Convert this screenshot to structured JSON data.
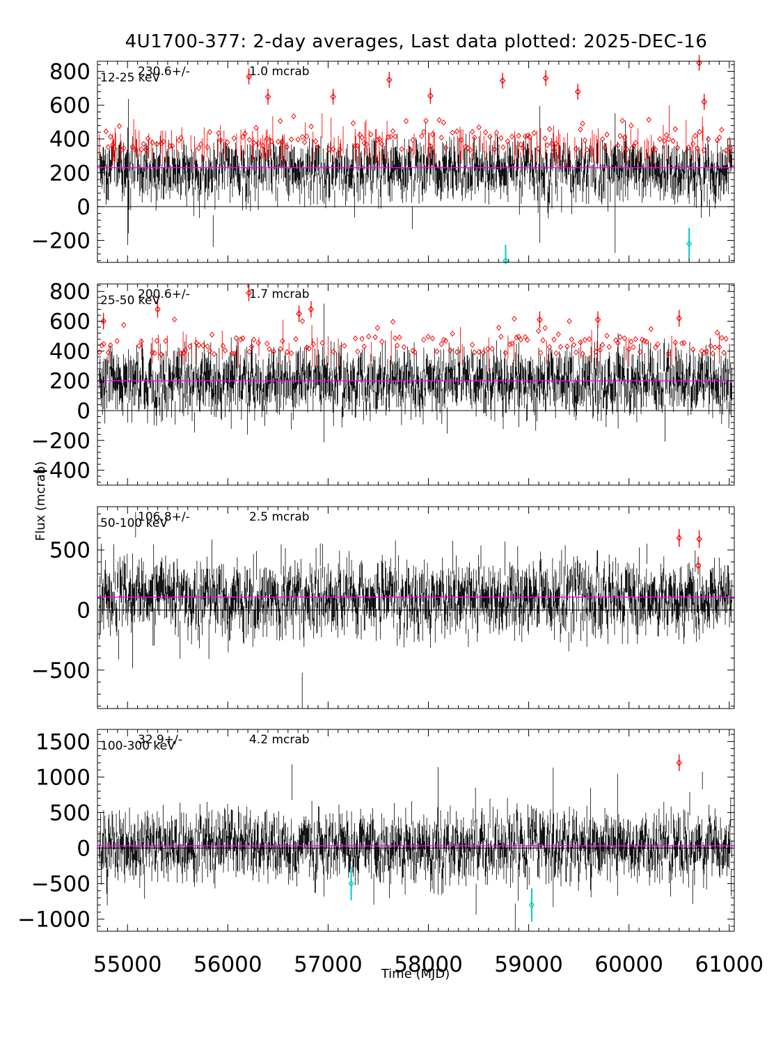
{
  "chart_data": {
    "type": "scatter",
    "title": "4U1700-377:  2-day averages,  Last data plotted: 2025-DEC-16",
    "xlabel": "Time (MJD)",
    "ylabel": "Flux (mcrab)",
    "xlim": [
      54700,
      61050
    ],
    "xticks": [
      55000,
      56000,
      57000,
      58000,
      59000,
      60000,
      61000
    ],
    "grid": false,
    "colors": {
      "data": "#000000",
      "high": "#ff0000",
      "low": "#00c8c8",
      "mean": "#ff00ff",
      "zero": "#000000"
    },
    "panels": [
      {
        "band": "12-25 keV",
        "mean": 230.6,
        "err": 1.0,
        "mean_label": "230.6+/-",
        "err_label": "1.0 mcrab",
        "ylim": [
          -330,
          860
        ],
        "yticks": [
          -200,
          0,
          200,
          400,
          600,
          800
        ],
        "ymin_tick": -200,
        "noise_sigma": 105,
        "baseline": 230,
        "red_threshold": 330,
        "highlights": [
          {
            "x": 56210,
            "y": 770
          },
          {
            "x": 57610,
            "y": 750
          },
          {
            "x": 58740,
            "y": 745
          },
          {
            "x": 59170,
            "y": 760
          },
          {
            "x": 60700,
            "y": 850
          },
          {
            "x": 56400,
            "y": 650
          },
          {
            "x": 57050,
            "y": 650
          },
          {
            "x": 58020,
            "y": 655
          },
          {
            "x": 59490,
            "y": 680
          },
          {
            "x": 60750,
            "y": 620
          }
        ],
        "lows": [
          {
            "x": 58770,
            "y": -320
          },
          {
            "x": 60600,
            "y": -220
          }
        ]
      },
      {
        "band": "25-50 keV",
        "mean": 200.6,
        "err": 1.7,
        "mean_label": "200.6+/-",
        "err_label": "1.7 mcrab",
        "ylim": [
          -500,
          850
        ],
        "yticks": [
          -400,
          -200,
          0,
          200,
          400,
          600,
          800
        ],
        "noise_sigma": 125,
        "baseline": 200,
        "red_threshold": 375,
        "highlights": [
          {
            "x": 56210,
            "y": 790
          },
          {
            "x": 55300,
            "y": 680
          },
          {
            "x": 56710,
            "y": 650
          },
          {
            "x": 56830,
            "y": 680
          },
          {
            "x": 59110,
            "y": 610
          },
          {
            "x": 59690,
            "y": 610
          },
          {
            "x": 60500,
            "y": 620
          },
          {
            "x": 54760,
            "y": 600
          }
        ],
        "lows": []
      },
      {
        "band": "50-100 keV",
        "mean": 106.8,
        "err": 2.5,
        "mean_label": "106.8+/-",
        "err_label": "2.5 mcrab",
        "ylim": [
          -820,
          860
        ],
        "yticks": [
          -500,
          0,
          500
        ],
        "noise_sigma": 165,
        "baseline": 105,
        "red_threshold": 10000,
        "highlights": [
          {
            "x": 60500,
            "y": 600
          },
          {
            "x": 60700,
            "y": 590
          },
          {
            "x": 60690,
            "y": 370
          }
        ],
        "lows": []
      },
      {
        "band": "100-300 keV",
        "mean": 32.9,
        "err": 4.2,
        "mean_label": "32.9+/-",
        "err_label": "4.2 mcrab",
        "ylim": [
          -1170,
          1670
        ],
        "yticks": [
          -1000,
          -500,
          0,
          500,
          1000,
          1500
        ],
        "noise_sigma": 260,
        "baseline": 33,
        "red_threshold": 100000,
        "highlights": [
          {
            "x": 60500,
            "y": 1200
          }
        ],
        "lows": [
          {
            "x": 57230,
            "y": -500
          },
          {
            "x": 59030,
            "y": -800
          }
        ]
      }
    ]
  }
}
